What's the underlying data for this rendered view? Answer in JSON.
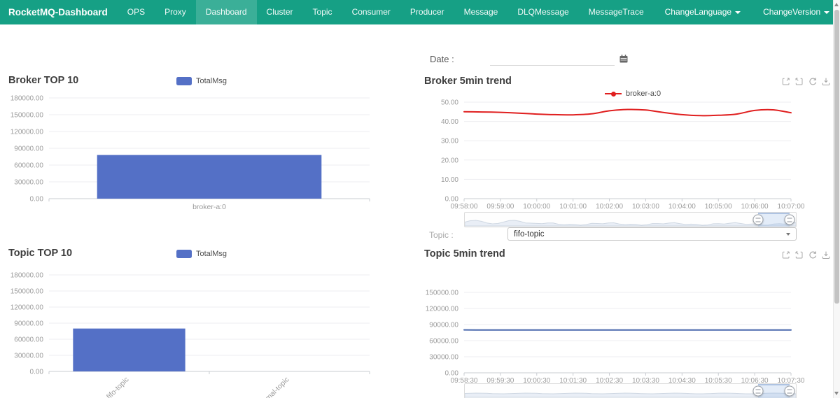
{
  "navbar": {
    "brand": "RocketMQ-Dashboard",
    "items": [
      {
        "label": "OPS",
        "active": false
      },
      {
        "label": "Proxy",
        "active": false
      },
      {
        "label": "Dashboard",
        "active": true
      },
      {
        "label": "Cluster",
        "active": false
      },
      {
        "label": "Topic",
        "active": false
      },
      {
        "label": "Consumer",
        "active": false
      },
      {
        "label": "Producer",
        "active": false
      },
      {
        "label": "Message",
        "active": false
      },
      {
        "label": "DLQMessage",
        "active": false
      },
      {
        "label": "MessageTrace",
        "active": false
      }
    ],
    "dropdowns": [
      {
        "label": "ChangeLanguage"
      },
      {
        "label": "ChangeVersion"
      }
    ],
    "colors": {
      "background": "#16a085",
      "active_item": "rgba(255,255,255,0.16)",
      "text": "#ffffff"
    }
  },
  "filters": {
    "date": {
      "label": "Date :",
      "value": ""
    },
    "topic": {
      "label": "Topic :",
      "value": "fifo-topic"
    }
  },
  "toolbox": {
    "icons": [
      "data-zoom",
      "data-zoom-reset",
      "refresh",
      "save-as-image"
    ]
  },
  "chart_data": [
    {
      "id": "broker-top10",
      "type": "bar",
      "title": "Broker TOP 10",
      "legend": [
        "TotalMsg"
      ],
      "categories": [
        "broker-a:0"
      ],
      "values": [
        78000
      ],
      "ylim": [
        0,
        180000
      ],
      "ytick_step": 30000,
      "grid": true,
      "legend_position": "top-center",
      "color": "#5470c6"
    },
    {
      "id": "broker-5min-trend",
      "type": "line",
      "title": "Broker 5min trend",
      "legend": [
        "broker-a:0"
      ],
      "x": [
        "09:58:00",
        "09:59:00",
        "10:00:00",
        "10:01:00",
        "10:02:00",
        "10:03:00",
        "10:04:00",
        "10:05:00",
        "10:06:00",
        "10:07:00"
      ],
      "values": [
        45.0,
        44.9,
        44.7,
        44.3,
        43.8,
        43.5,
        43.4,
        43.9,
        45.5,
        46.2,
        45.9,
        44.6,
        43.5,
        43.0,
        43.2,
        43.8,
        45.7,
        46.0,
        44.5
      ],
      "ylim": [
        0,
        50
      ],
      "ytick_step": 10,
      "grid": true,
      "legend_position": "top-center",
      "color": "#e01f1f"
    },
    {
      "id": "topic-top10",
      "type": "bar",
      "title": "Topic TOP 10",
      "legend": [
        "TotalMsg"
      ],
      "categories": [
        "fifo-topic",
        "normal-topic"
      ],
      "values": [
        80000,
        0
      ],
      "ylim": [
        0,
        180000
      ],
      "ytick_step": 30000,
      "grid": true,
      "x_label_rotate": 45,
      "legend_position": "top-center",
      "color": "#5470c6"
    },
    {
      "id": "topic-5min-trend",
      "type": "line",
      "title": "Topic 5min trend",
      "legend": [],
      "x": [
        "09:58:30",
        "09:59:30",
        "10:00:30",
        "10:01:30",
        "10:02:30",
        "10:03:30",
        "10:04:30",
        "10:05:30",
        "10:06:30",
        "10:07:30"
      ],
      "values": [
        80000,
        80000,
        80000,
        80000,
        80000,
        80000,
        80000,
        80000,
        80000,
        80000,
        80000,
        80000,
        80000,
        80000,
        80000,
        80000,
        80000,
        80000,
        80000
      ],
      "ylim": [
        0,
        150000
      ],
      "ytick_step": 30000,
      "grid": true,
      "color": "#4a69ad"
    }
  ]
}
